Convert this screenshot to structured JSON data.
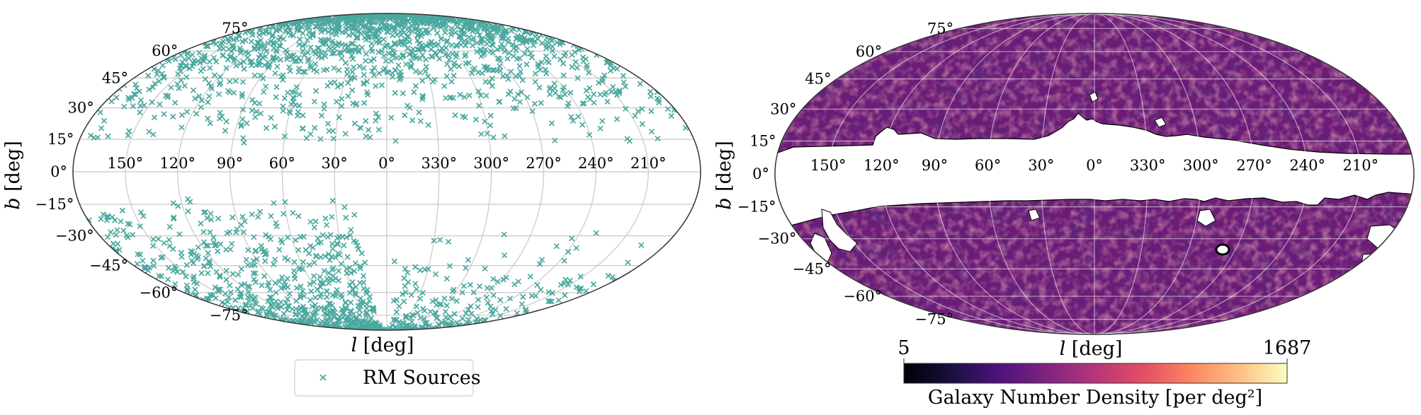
{
  "chart_data": [
    {
      "type": "scatter",
      "projection": "mollweide",
      "marker": "x",
      "color": "#4aa89f",
      "xlabel": "l [deg]",
      "ylabel": "b [deg]",
      "lon_ticks": [
        "150°",
        "120°",
        "90°",
        "60°",
        "30°",
        "0°",
        "330°",
        "300°",
        "270°",
        "240°",
        "210°"
      ],
      "lat_ticks": [
        "75°",
        "60°",
        "45°",
        "30°",
        "15°",
        "0°",
        "-15°",
        "-30°",
        "-45°",
        "-60°",
        "-75°"
      ],
      "legend": {
        "label": "RM Sources",
        "placement": "lower center"
      },
      "grid": true
    },
    {
      "type": "heatmap",
      "projection": "mollweide",
      "colormap": "magma",
      "xlabel": "l [deg]",
      "ylabel": "b [deg]",
      "lon_ticks": [
        "150°",
        "120°",
        "90°",
        "60°",
        "30°",
        "0°",
        "330°",
        "300°",
        "270°",
        "240°",
        "210°"
      ],
      "lat_ticks": [
        "75°",
        "60°",
        "45°",
        "30°",
        "15°",
        "0°",
        "-15°",
        "-30°",
        "-45°",
        "-60°",
        "-75°"
      ],
      "colorbar": {
        "min_label": "5",
        "max_label": "1687",
        "min": 5,
        "max": 1687,
        "label": "Galaxy Number Density [per deg²]"
      },
      "grid": true
    }
  ]
}
